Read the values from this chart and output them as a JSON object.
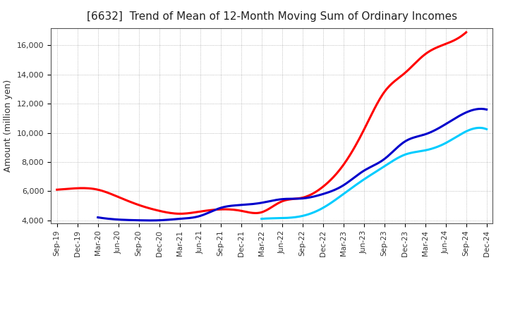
{
  "title": "[6632]  Trend of Mean of 12-Month Moving Sum of Ordinary Incomes",
  "ylabel": "Amount (million yen)",
  "background_color": "#ffffff",
  "grid_color": "#888888",
  "ylim": [
    3800,
    17200
  ],
  "yticks": [
    4000,
    6000,
    8000,
    10000,
    12000,
    14000,
    16000
  ],
  "title_fontsize": 11,
  "title_fontweight": "normal",
  "series": {
    "3 Years": {
      "color": "#ff0000",
      "linewidth": 2.2,
      "data": [
        [
          "Sep-19",
          6100
        ],
        [
          "Dec-19",
          6200
        ],
        [
          "Mar-20",
          6100
        ],
        [
          "Jun-20",
          5600
        ],
        [
          "Sep-20",
          5050
        ],
        [
          "Dec-20",
          4650
        ],
        [
          "Mar-21",
          4450
        ],
        [
          "Jun-21",
          4600
        ],
        [
          "Sep-21",
          4750
        ],
        [
          "Dec-21",
          4650
        ],
        [
          "Mar-22",
          4550
        ],
        [
          "Jun-22",
          5300
        ],
        [
          "Sep-22",
          5550
        ],
        [
          "Dec-22",
          6300
        ],
        [
          "Mar-23",
          7800
        ],
        [
          "Jun-23",
          10200
        ],
        [
          "Sep-23",
          12800
        ],
        [
          "Dec-23",
          14100
        ],
        [
          "Mar-24",
          15400
        ],
        [
          "Jun-24",
          16100
        ],
        [
          "Sep-24",
          16900
        ]
      ]
    },
    "5 Years": {
      "color": "#0000cc",
      "linewidth": 2.2,
      "data": [
        [
          "Mar-20",
          4200
        ],
        [
          "Jun-20",
          4050
        ],
        [
          "Sep-20",
          4000
        ],
        [
          "Dec-20",
          4000
        ],
        [
          "Mar-21",
          4100
        ],
        [
          "Jun-21",
          4300
        ],
        [
          "Sep-21",
          4850
        ],
        [
          "Dec-21",
          5050
        ],
        [
          "Mar-22",
          5200
        ],
        [
          "Jun-22",
          5450
        ],
        [
          "Sep-22",
          5500
        ],
        [
          "Dec-22",
          5800
        ],
        [
          "Mar-23",
          6400
        ],
        [
          "Jun-23",
          7400
        ],
        [
          "Sep-23",
          8200
        ],
        [
          "Dec-23",
          9400
        ],
        [
          "Mar-24",
          9900
        ],
        [
          "Jun-24",
          10600
        ],
        [
          "Sep-24",
          11400
        ],
        [
          "Dec-24",
          11600
        ]
      ]
    },
    "7 Years": {
      "color": "#00ccff",
      "linewidth": 2.2,
      "data": [
        [
          "Mar-22",
          4100
        ],
        [
          "Jun-22",
          4150
        ],
        [
          "Sep-22",
          4300
        ],
        [
          "Dec-22",
          4850
        ],
        [
          "Mar-23",
          5800
        ],
        [
          "Jun-23",
          6800
        ],
        [
          "Sep-23",
          7700
        ],
        [
          "Dec-23",
          8500
        ],
        [
          "Mar-24",
          8800
        ],
        [
          "Jun-24",
          9300
        ],
        [
          "Sep-24",
          10100
        ],
        [
          "Dec-24",
          10250
        ]
      ]
    },
    "10 Years": {
      "color": "#008000",
      "linewidth": 2.2,
      "data": []
    }
  },
  "xticklabels": [
    "Sep-19",
    "Dec-19",
    "Mar-20",
    "Jun-20",
    "Sep-20",
    "Dec-20",
    "Mar-21",
    "Jun-21",
    "Sep-21",
    "Dec-21",
    "Mar-22",
    "Jun-22",
    "Sep-22",
    "Dec-22",
    "Mar-23",
    "Jun-23",
    "Sep-23",
    "Dec-23",
    "Mar-24",
    "Jun-24",
    "Sep-24",
    "Dec-24"
  ]
}
